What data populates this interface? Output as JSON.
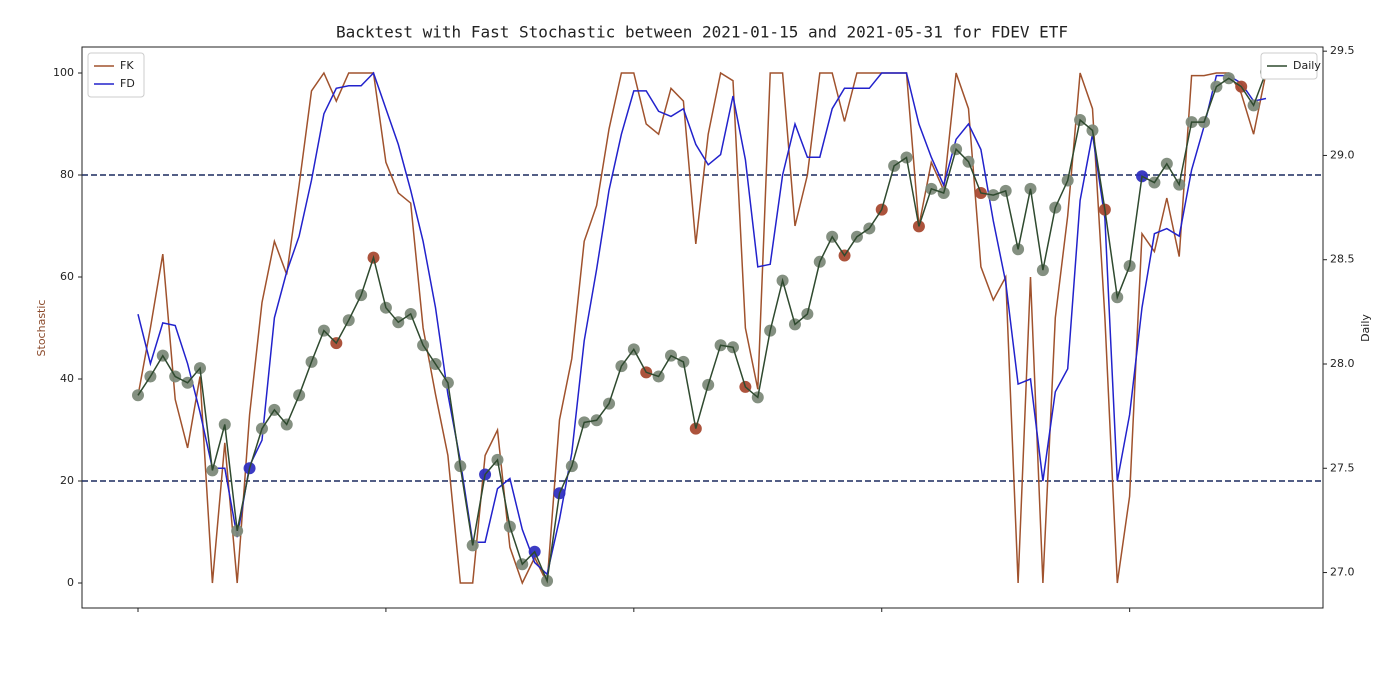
{
  "chart_data": {
    "type": "line",
    "title": "Backtest with Fast Stochastic between 2021-01-15 and 2021-05-31 for FDEV ETF",
    "y_label": "Stochastic",
    "y_label_color": "#8b4a2b",
    "y2_label": "Daily",
    "categories": [
      null,
      null,
      null,
      null,
      null,
      null,
      null,
      null,
      null,
      null,
      null,
      null,
      null,
      null,
      null,
      null,
      null,
      null,
      null,
      null,
      null,
      null,
      null,
      null,
      null,
      null,
      null,
      null,
      null,
      null,
      null,
      null,
      null,
      null,
      null,
      null,
      null,
      null,
      null,
      null,
      null,
      null,
      null,
      null,
      null,
      null,
      null,
      null,
      null,
      null,
      null,
      null,
      null,
      null,
      null,
      null,
      null,
      null,
      null,
      null,
      null,
      null,
      null,
      null,
      null,
      null,
      null,
      null,
      null,
      null,
      null,
      null,
      null,
      null,
      null,
      null,
      null,
      null,
      null,
      null,
      null,
      null,
      null,
      null,
      null,
      null,
      null,
      null,
      null,
      null,
      null,
      null
    ],
    "ylim": [
      -4.9,
      105.1
    ],
    "yticks": [
      0,
      20,
      40,
      60,
      80,
      100
    ],
    "y2lim": [
      26.83,
      29.52
    ],
    "y2ticks": [
      {
        "value": 27.0,
        "label": "27.0"
      },
      {
        "value": 27.5,
        "label": "27.5"
      },
      {
        "value": 28.0,
        "label": "28.0"
      },
      {
        "value": 28.5,
        "label": "28.5"
      },
      {
        "value": 29.0,
        "label": "29.0"
      },
      {
        "value": 29.5,
        "label": "29.5"
      }
    ],
    "hlines": [
      20,
      80
    ],
    "hline_color": "#1a2a5e",
    "legend": "upper left",
    "legend2": "upper right",
    "series": [
      {
        "name": "FK",
        "color": "#a0522d",
        "values": [
          36.7,
          50,
          64.5,
          36,
          26.5,
          40.5,
          0,
          27.5,
          0,
          33,
          55,
          67,
          60.5,
          78,
          96.5,
          100,
          94.5,
          100,
          100,
          100,
          82.5,
          76.5,
          74.5,
          50,
          37,
          25,
          0,
          0,
          25,
          30,
          7,
          0,
          5,
          0,
          32,
          44,
          67,
          74,
          89,
          100,
          100,
          90,
          88,
          97,
          94.5,
          66.5,
          88,
          100,
          98.5,
          50,
          38,
          100,
          100,
          70,
          80,
          100,
          100,
          90.5,
          100,
          100,
          100,
          100,
          100,
          70,
          82.5,
          77,
          100,
          93,
          62,
          55.5,
          60,
          0,
          60,
          0,
          52,
          72,
          100,
          93,
          52,
          0,
          17,
          68.5,
          65,
          75.5,
          64,
          99.5,
          99.5,
          100,
          100,
          96,
          88,
          100
        ]
      },
      {
        "name": "FD",
        "color": "#2222cc",
        "values": [
          52.7,
          43,
          51,
          50.5,
          43,
          33.5,
          22.5,
          22.5,
          9,
          23,
          28,
          52,
          61,
          68,
          79,
          92,
          97,
          97.5,
          97.5,
          100,
          93,
          86,
          77,
          67,
          54,
          37,
          24,
          8,
          8,
          18.5,
          20.5,
          10.5,
          4,
          1.7,
          12.5,
          25.5,
          47.5,
          61.5,
          77,
          88,
          96.5,
          96.5,
          92.5,
          91.5,
          93,
          86,
          82,
          84,
          95.5,
          83,
          62,
          62.5,
          80,
          90,
          83.5,
          83.5,
          93,
          97,
          97,
          97,
          100,
          100,
          100,
          90,
          83.5,
          78,
          87,
          90,
          85,
          71,
          59,
          39,
          40,
          20,
          37.5,
          42,
          75,
          88,
          71.5,
          20,
          33,
          54,
          68.5,
          69.5,
          68,
          81,
          89.5,
          99.5,
          99.5,
          98,
          94.5,
          95
        ]
      },
      {
        "name": "Daily",
        "color": "#2f4a2f",
        "axis": "y2",
        "marker_color": "#7d8a7a",
        "values": [
          27.85,
          27.94,
          28.04,
          27.94,
          27.91,
          27.98,
          27.49,
          27.71,
          27.2,
          27.5,
          27.69,
          27.78,
          27.71,
          27.85,
          28.01,
          28.16,
          28.1,
          28.21,
          28.33,
          28.51,
          28.27,
          28.2,
          28.24,
          28.09,
          28.0,
          27.91,
          27.51,
          27.13,
          27.47,
          27.54,
          27.22,
          27.04,
          27.1,
          26.96,
          27.38,
          27.51,
          27.72,
          27.73,
          27.81,
          27.99,
          28.07,
          27.96,
          27.94,
          28.04,
          28.01,
          27.69,
          27.9,
          28.09,
          28.08,
          27.89,
          27.84,
          28.16,
          28.4,
          28.19,
          28.24,
          28.49,
          28.61,
          28.52,
          28.61,
          28.65,
          28.74,
          28.95,
          28.99,
          28.66,
          28.84,
          28.82,
          29.03,
          28.97,
          28.82,
          28.81,
          28.83,
          28.55,
          28.84,
          28.45,
          28.75,
          28.88,
          29.17,
          29.12,
          28.74,
          28.32,
          28.47,
          28.9,
          28.87,
          28.96,
          28.86,
          29.16,
          29.16,
          29.33,
          29.37,
          29.33,
          29.24,
          29.4
        ],
        "sell_points": [
          16,
          19,
          41,
          45,
          49,
          57,
          60,
          63,
          68,
          78,
          89
        ],
        "sell_color": "#a84a32",
        "buy_points": [
          9,
          28,
          32,
          34,
          81
        ],
        "buy_color": "#3030c0"
      }
    ]
  }
}
